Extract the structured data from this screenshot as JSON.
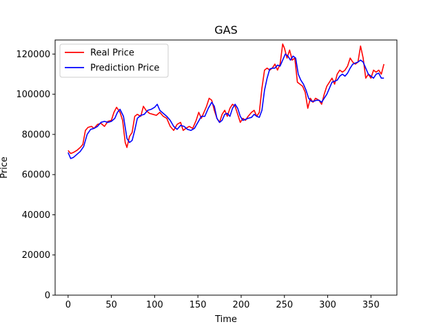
{
  "chart_data": {
    "type": "line",
    "title": "GAS",
    "xlabel": "Time",
    "ylabel": "Price",
    "xlim": [
      -15,
      380
    ],
    "ylim": [
      0,
      127000
    ],
    "xticks": [
      0,
      50,
      100,
      150,
      200,
      250,
      300,
      350
    ],
    "yticks": [
      0,
      20000,
      40000,
      60000,
      80000,
      100000,
      120000
    ],
    "legend": "top-left",
    "grid": false,
    "series": [
      {
        "name": "Real Price",
        "color": "#ff0000",
        "points": [
          [
            0,
            72000
          ],
          [
            3,
            70500
          ],
          [
            6,
            71000
          ],
          [
            10,
            72000
          ],
          [
            14,
            73500
          ],
          [
            17,
            75000
          ],
          [
            20,
            82000
          ],
          [
            23,
            83500
          ],
          [
            27,
            84000
          ],
          [
            30,
            83000
          ],
          [
            34,
            85000
          ],
          [
            38,
            85500
          ],
          [
            42,
            84000
          ],
          [
            46,
            86500
          ],
          [
            50,
            87000
          ],
          [
            53,
            91000
          ],
          [
            56,
            93500
          ],
          [
            60,
            91000
          ],
          [
            63,
            87000
          ],
          [
            66,
            76000
          ],
          [
            68,
            73500
          ],
          [
            71,
            79000
          ],
          [
            74,
            81000
          ],
          [
            77,
            89000
          ],
          [
            80,
            90000
          ],
          [
            84,
            89000
          ],
          [
            87,
            94000
          ],
          [
            90,
            92000
          ],
          [
            94,
            90500
          ],
          [
            98,
            90000
          ],
          [
            102,
            89500
          ],
          [
            106,
            91000
          ],
          [
            110,
            89000
          ],
          [
            114,
            88000
          ],
          [
            118,
            84000
          ],
          [
            122,
            82000
          ],
          [
            126,
            85000
          ],
          [
            130,
            86000
          ],
          [
            133,
            82000
          ],
          [
            136,
            83000
          ],
          [
            140,
            84000
          ],
          [
            144,
            83000
          ],
          [
            148,
            87000
          ],
          [
            151,
            91000
          ],
          [
            154,
            88000
          ],
          [
            157,
            91000
          ],
          [
            160,
            94000
          ],
          [
            163,
            98000
          ],
          [
            166,
            97000
          ],
          [
            169,
            92000
          ],
          [
            172,
            88000
          ],
          [
            175,
            86000
          ],
          [
            178,
            90000
          ],
          [
            181,
            92000
          ],
          [
            184,
            89000
          ],
          [
            187,
            93000
          ],
          [
            190,
            95000
          ],
          [
            193,
            94000
          ],
          [
            196,
            90000
          ],
          [
            199,
            86000
          ],
          [
            202,
            88000
          ],
          [
            205,
            87000
          ],
          [
            208,
            89000
          ],
          [
            212,
            91000
          ],
          [
            215,
            92000
          ],
          [
            218,
            89000
          ],
          [
            221,
            91000
          ],
          [
            224,
            103000
          ],
          [
            227,
            112000
          ],
          [
            230,
            113000
          ],
          [
            233,
            112000
          ],
          [
            236,
            113000
          ],
          [
            239,
            115000
          ],
          [
            242,
            112000
          ],
          [
            245,
            115000
          ],
          [
            248,
            125000
          ],
          [
            250,
            123000
          ],
          [
            253,
            118000
          ],
          [
            256,
            122000
          ],
          [
            259,
            117000
          ],
          [
            262,
            118000
          ],
          [
            265,
            106000
          ],
          [
            268,
            105000
          ],
          [
            271,
            104000
          ],
          [
            274,
            101000
          ],
          [
            277,
            93000
          ],
          [
            280,
            98000
          ],
          [
            283,
            96000
          ],
          [
            286,
            98000
          ],
          [
            290,
            97000
          ],
          [
            293,
            95000
          ],
          [
            296,
            100000
          ],
          [
            299,
            104000
          ],
          [
            302,
            106000
          ],
          [
            305,
            108000
          ],
          [
            308,
            105000
          ],
          [
            311,
            110000
          ],
          [
            314,
            112000
          ],
          [
            317,
            111000
          ],
          [
            320,
            112000
          ],
          [
            323,
            114000
          ],
          [
            326,
            118000
          ],
          [
            329,
            116000
          ],
          [
            332,
            115000
          ],
          [
            335,
            116000
          ],
          [
            338,
            124000
          ],
          [
            341,
            118000
          ],
          [
            344,
            108000
          ],
          [
            347,
            110000
          ],
          [
            350,
            108000
          ],
          [
            353,
            112000
          ],
          [
            356,
            111000
          ],
          [
            359,
            112000
          ],
          [
            362,
            110000
          ],
          [
            365,
            115000
          ]
        ]
      },
      {
        "name": "Prediction Price",
        "color": "#0000ff",
        "points": [
          [
            0,
            71000
          ],
          [
            3,
            68000
          ],
          [
            6,
            68500
          ],
          [
            10,
            70000
          ],
          [
            14,
            71500
          ],
          [
            18,
            74000
          ],
          [
            22,
            80000
          ],
          [
            26,
            82500
          ],
          [
            30,
            83000
          ],
          [
            34,
            84000
          ],
          [
            38,
            86000
          ],
          [
            42,
            86500
          ],
          [
            46,
            86000
          ],
          [
            50,
            86500
          ],
          [
            54,
            88000
          ],
          [
            57,
            91000
          ],
          [
            60,
            92500
          ],
          [
            64,
            89000
          ],
          [
            68,
            78000
          ],
          [
            71,
            76000
          ],
          [
            74,
            77000
          ],
          [
            77,
            82000
          ],
          [
            80,
            88000
          ],
          [
            84,
            89500
          ],
          [
            88,
            90000
          ],
          [
            92,
            92000
          ],
          [
            96,
            92500
          ],
          [
            100,
            93500
          ],
          [
            103,
            95000
          ],
          [
            106,
            92000
          ],
          [
            110,
            90500
          ],
          [
            114,
            89000
          ],
          [
            118,
            87000
          ],
          [
            122,
            84000
          ],
          [
            126,
            82500
          ],
          [
            130,
            84500
          ],
          [
            134,
            84000
          ],
          [
            138,
            82500
          ],
          [
            142,
            82000
          ],
          [
            146,
            83000
          ],
          [
            150,
            86000
          ],
          [
            154,
            89000
          ],
          [
            158,
            89000
          ],
          [
            162,
            93000
          ],
          [
            166,
            96000
          ],
          [
            169,
            94000
          ],
          [
            172,
            88000
          ],
          [
            175,
            86000
          ],
          [
            178,
            87000
          ],
          [
            181,
            90000
          ],
          [
            184,
            90500
          ],
          [
            187,
            89000
          ],
          [
            190,
            93000
          ],
          [
            193,
            95000
          ],
          [
            196,
            93000
          ],
          [
            199,
            89000
          ],
          [
            202,
            87000
          ],
          [
            205,
            87500
          ],
          [
            208,
            88000
          ],
          [
            212,
            88500
          ],
          [
            215,
            90000
          ],
          [
            218,
            89000
          ],
          [
            221,
            88500
          ],
          [
            224,
            92000
          ],
          [
            227,
            102000
          ],
          [
            230,
            108000
          ],
          [
            233,
            112500
          ],
          [
            236,
            113000
          ],
          [
            239,
            113000
          ],
          [
            242,
            114500
          ],
          [
            245,
            114000
          ],
          [
            248,
            117000
          ],
          [
            251,
            120000
          ],
          [
            254,
            119000
          ],
          [
            257,
            117000
          ],
          [
            260,
            119000
          ],
          [
            263,
            118000
          ],
          [
            266,
            110000
          ],
          [
            269,
            107000
          ],
          [
            272,
            105000
          ],
          [
            275,
            102000
          ],
          [
            278,
            98000
          ],
          [
            281,
            96500
          ],
          [
            284,
            96500
          ],
          [
            287,
            97000
          ],
          [
            290,
            97000
          ],
          [
            293,
            96000
          ],
          [
            296,
            98000
          ],
          [
            299,
            100000
          ],
          [
            302,
            103000
          ],
          [
            305,
            106000
          ],
          [
            308,
            106500
          ],
          [
            311,
            107000
          ],
          [
            314,
            109000
          ],
          [
            317,
            110000
          ],
          [
            320,
            109000
          ],
          [
            323,
            110500
          ],
          [
            326,
            113000
          ],
          [
            329,
            115000
          ],
          [
            332,
            115500
          ],
          [
            335,
            116000
          ],
          [
            338,
            117000
          ],
          [
            341,
            116000
          ],
          [
            344,
            113000
          ],
          [
            347,
            110000
          ],
          [
            350,
            109000
          ],
          [
            353,
            108000
          ],
          [
            356,
            110000
          ],
          [
            359,
            110500
          ],
          [
            362,
            108000
          ],
          [
            365,
            108000
          ]
        ]
      }
    ]
  }
}
